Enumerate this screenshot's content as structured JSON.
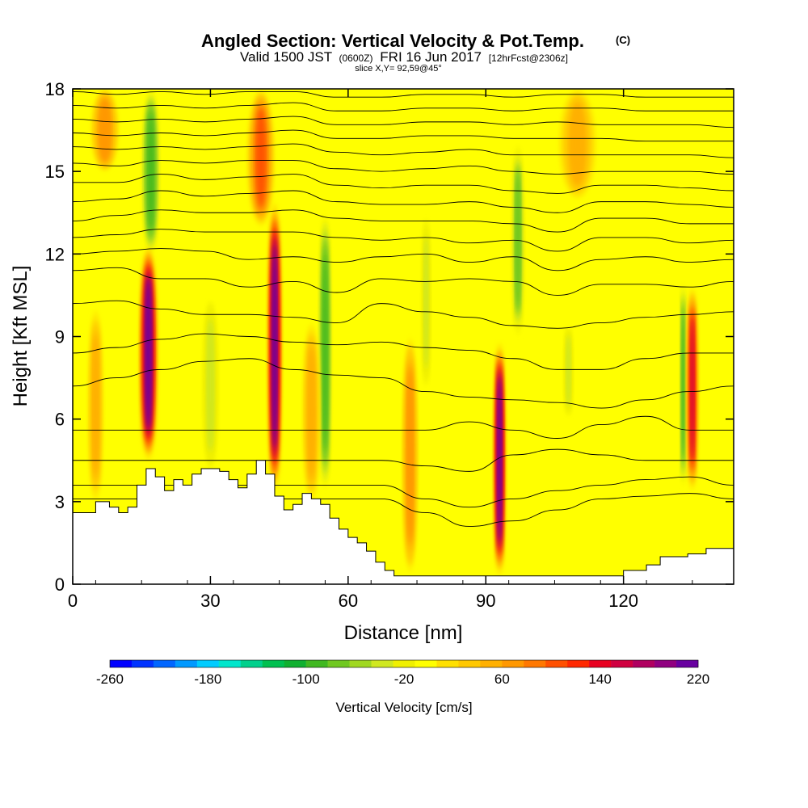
{
  "chart_data": {
    "type": "contour",
    "title": "Angled Section: Vertical Velocity & Pot.Temp.",
    "title_mark": "(C)",
    "subtitle": {
      "prefix": "Valid 1500 JST",
      "utc": "(0600Z)",
      "date": "FRI 16 Jun 2017",
      "forecast": "[12hrFcst@2306z]"
    },
    "slice_info": "slice X,Y= 92,59@45°",
    "xlabel": "Distance [nm]",
    "ylabel": "Height [Kft MSL]",
    "xlim": [
      0,
      144
    ],
    "ylim": [
      0,
      18
    ],
    "x_ticks": [
      "0",
      "30",
      "60",
      "90",
      "120"
    ],
    "x_tick_values": [
      0,
      30,
      60,
      90,
      120
    ],
    "y_ticks": [
      "0",
      "3",
      "6",
      "9",
      "12",
      "15",
      "18"
    ],
    "y_tick_values": [
      0,
      3,
      6,
      9,
      12,
      15,
      18
    ],
    "background_color": "#ffff00",
    "colorbar": {
      "label": "Vertical Velocity [cm/s]",
      "tick_labels": [
        "-260",
        "-180",
        "-100",
        "-20",
        "60",
        "140",
        "220"
      ],
      "tick_values": [
        -260,
        -180,
        -100,
        -20,
        60,
        140,
        220
      ],
      "colors": [
        "#0000ff",
        "#0033ff",
        "#0066ff",
        "#0099ff",
        "#00ccff",
        "#00e6cc",
        "#00d08c",
        "#00c050",
        "#10b030",
        "#40b820",
        "#70c820",
        "#a0d820",
        "#d0e820",
        "#f0f000",
        "#ffff00",
        "#ffe000",
        "#ffc800",
        "#ffb000",
        "#ff9800",
        "#ff7800",
        "#ff5000",
        "#ff2800",
        "#e80020",
        "#d00040",
        "#b00060",
        "#900080",
        "#6800a0"
      ]
    },
    "terrain_profile": {
      "x": [
        0,
        5,
        8,
        10,
        12,
        14,
        16,
        18,
        20,
        22,
        24,
        26,
        28,
        30,
        32,
        34,
        36,
        38,
        40,
        42,
        44,
        46,
        48,
        50,
        52,
        54,
        56,
        58,
        60,
        62,
        64,
        66,
        68,
        70,
        75,
        80,
        85,
        90,
        92,
        94,
        96,
        100,
        105,
        110,
        114,
        120,
        125,
        128,
        134,
        138,
        144
      ],
      "height": [
        2.6,
        3.0,
        2.8,
        2.6,
        2.8,
        3.6,
        4.2,
        3.9,
        3.4,
        3.8,
        3.6,
        4.0,
        4.2,
        4.2,
        4.1,
        3.8,
        3.5,
        4.0,
        4.5,
        4.0,
        3.2,
        2.7,
        2.9,
        3.3,
        3.1,
        2.9,
        2.4,
        2.0,
        1.7,
        1.5,
        1.2,
        0.8,
        0.5,
        0.3,
        0.3,
        0.3,
        0.3,
        0.3,
        0.3,
        0.3,
        0.3,
        0.3,
        0.3,
        0.3,
        0.3,
        0.5,
        0.7,
        1.0,
        1.1,
        1.3,
        1.3
      ]
    },
    "updraft_cores": [
      {
        "x": 16.5,
        "z_bottom": 4.5,
        "z_top": 12.3,
        "max_value": 220,
        "width": 4.2
      },
      {
        "x": 44.0,
        "z_bottom": 3.4,
        "z_top": 13.9,
        "max_value": 220,
        "width": 3.4
      },
      {
        "x": 52.0,
        "z_bottom": 3.0,
        "z_top": 9.5,
        "max_value": 60,
        "width": 4.0
      },
      {
        "x": 73.5,
        "z_bottom": 0.4,
        "z_top": 9.0,
        "max_value": 80,
        "width": 3.6
      },
      {
        "x": 93.0,
        "z_bottom": 0.3,
        "z_top": 8.8,
        "max_value": 220,
        "width": 3.0
      },
      {
        "x": 135.0,
        "z_bottom": 3.4,
        "z_top": 10.8,
        "max_value": 160,
        "width": 2.8
      },
      {
        "x": 5.0,
        "z_bottom": 3.0,
        "z_top": 10.0,
        "max_value": 60,
        "width": 3.5
      },
      {
        "x": 41.0,
        "z_bottom": 13.0,
        "z_top": 18.0,
        "max_value": 100,
        "width": 6.0
      },
      {
        "x": 7.0,
        "z_bottom": 15.0,
        "z_top": 18.0,
        "max_value": 80,
        "width": 6.0
      },
      {
        "x": 110.0,
        "z_bottom": 14.0,
        "z_top": 18.0,
        "max_value": 60,
        "width": 8.0
      }
    ],
    "downdraft_bands": [
      {
        "x": 17.0,
        "z_bottom": 12.0,
        "z_top": 18.0,
        "min_value": -100,
        "width": 4.0
      },
      {
        "x": 55.0,
        "z_bottom": 3.4,
        "z_top": 13.5,
        "min_value": -100,
        "width": 3.0
      },
      {
        "x": 30.0,
        "z_bottom": 4.0,
        "z_top": 10.5,
        "min_value": -40,
        "width": 4.0
      },
      {
        "x": 97.0,
        "z_bottom": 9.0,
        "z_top": 16.0,
        "min_value": -80,
        "width": 3.0
      },
      {
        "x": 133.0,
        "z_bottom": 3.5,
        "z_top": 11.0,
        "min_value": -100,
        "width": 1.6
      },
      {
        "x": 108.0,
        "z_bottom": 6.0,
        "z_top": 9.5,
        "min_value": -40,
        "width": 2.5
      },
      {
        "x": 77.0,
        "z_bottom": 7.0,
        "z_top": 13.5,
        "min_value": -40,
        "width": 2.5
      }
    ],
    "theta_contour_levels_kft": [
      {
        "z": 3.1,
        "dev": [
          0,
          0,
          0,
          0,
          0,
          0,
          0,
          0,
          -0.5,
          -1.0,
          -0.8,
          -0.4,
          0,
          0.1,
          0.2,
          0
        ]
      },
      {
        "z": 3.6,
        "dev": [
          0,
          0,
          0,
          0,
          0,
          0,
          0,
          0,
          -0.5,
          -0.8,
          -0.5,
          -0.2,
          0,
          0.2,
          0.3,
          0
        ]
      },
      {
        "z": 4.5,
        "dev": [
          0,
          0,
          0,
          0,
          0,
          0,
          0,
          0,
          -0.2,
          -0.4,
          0.2,
          0.4,
          0.2,
          0,
          0,
          0
        ]
      },
      {
        "z": 5.6,
        "dev": [
          0,
          0,
          0,
          0,
          0,
          0,
          0,
          0,
          0,
          0.3,
          0.0,
          -0.3,
          0.2,
          0.5,
          0,
          0
        ]
      },
      {
        "z": 7.2,
        "dev": [
          0,
          0.3,
          0.6,
          0.9,
          1.0,
          0.6,
          0.4,
          0.3,
          -0.2,
          -0.4,
          -0.5,
          -0.6,
          -0.8,
          -0.5,
          -0.2,
          0
        ]
      },
      {
        "z": 8.4,
        "dev": [
          0,
          0.2,
          0.5,
          0.7,
          0.6,
          0.4,
          0.3,
          0.4,
          0.2,
          0.1,
          -0.2,
          -0.6,
          -0.6,
          -0.2,
          0,
          0
        ]
      },
      {
        "z": 9.7,
        "dev": [
          0.5,
          0.6,
          0.3,
          0.1,
          0.1,
          0.0,
          -0.2,
          0.5,
          0.2,
          0.0,
          -0.3,
          -0.4,
          -0.2,
          0,
          0.1,
          0.2
        ]
      },
      {
        "z": 10.8,
        "dev": [
          0.6,
          0.7,
          0.3,
          0.3,
          0.0,
          0.2,
          -0.2,
          0.3,
          0.2,
          0.3,
          0.2,
          -0.3,
          0.1,
          0.1,
          0.0,
          0.2
        ]
      },
      {
        "z": 11.6,
        "dev": [
          0.4,
          0.5,
          0.6,
          0.5,
          0.2,
          0.3,
          0.1,
          0.3,
          0.4,
          0.1,
          0.3,
          -0.2,
          0.2,
          0.3,
          0.1,
          0.2
        ]
      },
      {
        "z": 12.2,
        "dev": [
          0.4,
          0.5,
          0.7,
          0.6,
          0.6,
          0.6,
          0.4,
          0.3,
          0.4,
          0.2,
          0.3,
          -0.1,
          0.4,
          0.4,
          0.2,
          0.3
        ]
      },
      {
        "z": 12.8,
        "dev": [
          0.4,
          0.6,
          0.8,
          0.7,
          0.7,
          0.8,
          0.5,
          0.4,
          0.4,
          0.4,
          0.3,
          0.0,
          0.5,
          0.5,
          0.3,
          0.3
        ]
      },
      {
        "z": 13.4,
        "dev": [
          0.5,
          0.6,
          0.9,
          0.7,
          0.8,
          0.9,
          0.5,
          0.4,
          0.4,
          0.5,
          0.3,
          0.1,
          0.5,
          0.5,
          0.4,
          0.3
        ]
      },
      {
        "z": 14.0,
        "dev": [
          0.6,
          0.6,
          0.9,
          0.7,
          0.8,
          0.9,
          0.5,
          0.4,
          0.5,
          0.5,
          0.3,
          0.2,
          0.5,
          0.5,
          0.4,
          0.3
        ]
      },
      {
        "z": 14.6,
        "dev": [
          0.7,
          0.6,
          0.8,
          0.7,
          0.8,
          0.8,
          0.5,
          0.4,
          0.5,
          0.6,
          0.4,
          0.3,
          0.4,
          0.4,
          0.4,
          0.3
        ]
      },
      {
        "z": 15.2,
        "dev": [
          0.7,
          0.6,
          0.7,
          0.6,
          0.7,
          0.8,
          0.5,
          0.4,
          0.5,
          0.6,
          0.4,
          0.4,
          0.4,
          0.4,
          0.4,
          0.3
        ]
      },
      {
        "z": 15.8,
        "dev": [
          0.6,
          0.5,
          0.6,
          0.5,
          0.6,
          0.7,
          0.4,
          0.4,
          0.5,
          0.5,
          0.4,
          0.4,
          0.4,
          0.3,
          0.3,
          0.3
        ]
      },
      {
        "z": 16.4,
        "dev": [
          0.5,
          0.4,
          0.5,
          0.4,
          0.5,
          0.6,
          0.3,
          0.3,
          0.4,
          0.4,
          0.3,
          0.4,
          0.3,
          0.3,
          0.3,
          0.2
        ]
      },
      {
        "z": 17.0,
        "dev": [
          0.4,
          0.3,
          0.4,
          0.3,
          0.4,
          0.5,
          0.2,
          0.2,
          0.3,
          0.3,
          0.2,
          0.3,
          0.3,
          0.2,
          0.2,
          0.2
        ]
      },
      {
        "z": 17.6,
        "dev": [
          0.3,
          0.2,
          0.3,
          0.2,
          0.3,
          0.3,
          0.1,
          0.1,
          0.2,
          0.2,
          0.1,
          0.2,
          0.2,
          0.1,
          0.1,
          0.1
        ]
      }
    ]
  }
}
